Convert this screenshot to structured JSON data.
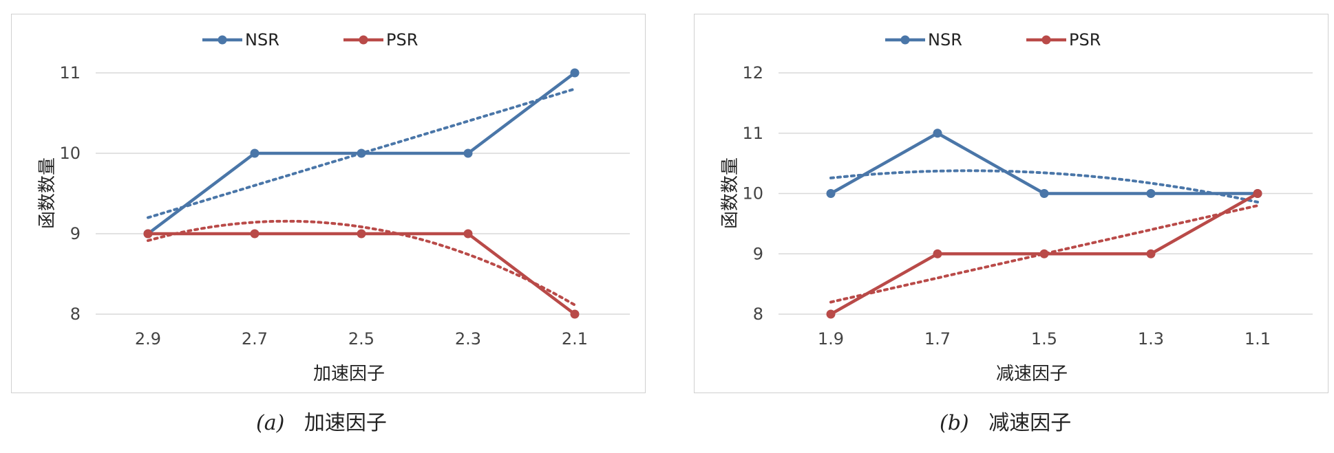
{
  "chart_data": [
    {
      "type": "line",
      "xlabel": "加速因子",
      "ylabel": "函数数量",
      "categories": [
        "2.9",
        "2.7",
        "2.5",
        "2.3",
        "2.1"
      ],
      "yticks": [
        "8",
        "9",
        "10",
        "11"
      ],
      "ylim": [
        8,
        11
      ],
      "grid": true,
      "legend_position": "top",
      "series": [
        {
          "name": "NSR",
          "values": [
            9,
            10,
            10,
            10,
            11
          ],
          "color": "#4a76a8",
          "trend": "linear"
        },
        {
          "name": "PSR",
          "values": [
            9,
            9,
            9,
            9,
            8
          ],
          "color": "#b94a48",
          "trend": "polynomial"
        }
      ]
    },
    {
      "type": "line",
      "xlabel": "减速因子",
      "ylabel": "函数数量",
      "categories": [
        "1.9",
        "1.7",
        "1.5",
        "1.3",
        "1.1"
      ],
      "yticks": [
        "8",
        "9",
        "10",
        "11",
        "12"
      ],
      "ylim": [
        8,
        12
      ],
      "grid": true,
      "legend_position": "top",
      "series": [
        {
          "name": "NSR",
          "values": [
            10,
            11,
            10,
            10,
            10
          ],
          "color": "#4a76a8",
          "trend": "polynomial"
        },
        {
          "name": "PSR",
          "values": [
            8,
            9,
            9,
            9,
            10
          ],
          "color": "#b94a48",
          "trend": "linear"
        }
      ]
    }
  ],
  "captions": [
    {
      "label": "(a)",
      "text": "加速因子"
    },
    {
      "label": "(b)",
      "text": "减速因子"
    }
  ]
}
